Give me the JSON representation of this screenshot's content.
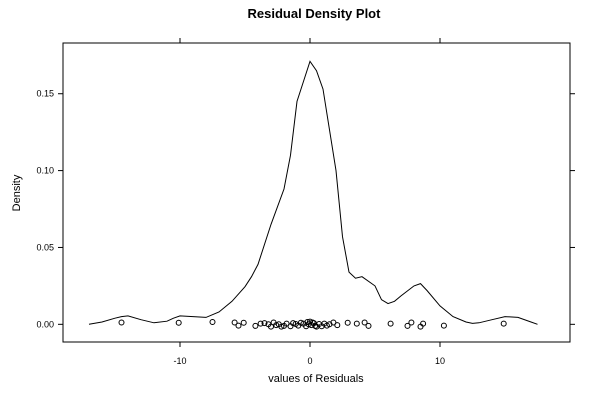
{
  "chart_data": {
    "type": "line",
    "title": "Residual Density Plot",
    "xlabel": "values of Residuals",
    "ylabel": "Density",
    "xlim": [
      -19,
      20
    ],
    "ylim": [
      -0.0115,
      0.183
    ],
    "x_ticks": [
      -10,
      0,
      10
    ],
    "x_tick_labels": [
      "-10",
      "0",
      "10"
    ],
    "y_ticks": [
      0.0,
      0.05,
      0.1,
      0.15
    ],
    "y_tick_labels": [
      "0.00",
      "0.05",
      "0.10",
      "0.15"
    ],
    "grid": false,
    "legend": "none",
    "series": [
      {
        "kind": "density-curve",
        "x": [
          -17.0,
          -16.0,
          -15.0,
          -14.5,
          -14.0,
          -13.0,
          -12.0,
          -11.0,
          -10.5,
          -10.0,
          -9.0,
          -8.0,
          -7.0,
          -6.0,
          -5.0,
          -4.5,
          -4.0,
          -3.0,
          -2.0,
          -1.5,
          -1.0,
          -0.5,
          0.0,
          0.5,
          1.0,
          2.0,
          2.5,
          3.0,
          3.5,
          4.0,
          5.0,
          5.5,
          6.0,
          6.5,
          7.0,
          8.0,
          8.5,
          9.0,
          10.0,
          11.0,
          12.0,
          12.5,
          13.0,
          14.0,
          15.0,
          16.0,
          17.0,
          17.5
        ],
        "y": [
          0.0,
          0.0015,
          0.004,
          0.005,
          0.0055,
          0.003,
          0.001,
          0.002,
          0.004,
          0.0055,
          0.005,
          0.0045,
          0.008,
          0.015,
          0.0245,
          0.031,
          0.039,
          0.065,
          0.088,
          0.11,
          0.145,
          0.158,
          0.171,
          0.165,
          0.153,
          0.1,
          0.057,
          0.034,
          0.03,
          0.031,
          0.025,
          0.016,
          0.0135,
          0.015,
          0.0185,
          0.025,
          0.0265,
          0.022,
          0.012,
          0.005,
          0.0015,
          0.0006,
          0.001,
          0.003,
          0.005,
          0.0045,
          0.0015,
          0.0
        ]
      },
      {
        "kind": "rug-points",
        "x": [
          -14.5,
          -10.1,
          -7.5,
          -5.8,
          -5.5,
          -5.1,
          -4.2,
          -3.8,
          -3.5,
          -3.2,
          -3.0,
          -2.8,
          -2.6,
          -2.4,
          -2.2,
          -2.0,
          -1.8,
          -1.5,
          -1.3,
          -1.1,
          -0.9,
          -0.7,
          -0.5,
          -0.3,
          -0.2,
          -0.1,
          0.0,
          0.1,
          0.2,
          0.3,
          0.4,
          0.5,
          0.7,
          0.9,
          1.1,
          1.3,
          1.5,
          1.8,
          2.1,
          2.9,
          3.6,
          4.2,
          4.5,
          6.2,
          7.5,
          7.8,
          8.5,
          8.7,
          10.3,
          14.9
        ],
        "y": [
          0.0012,
          0.001,
          0.0015,
          0.0012,
          -0.0008,
          0.001,
          -0.001,
          0.0005,
          0.0008,
          0.0,
          -0.0015,
          0.0012,
          -0.0005,
          0.0,
          -0.0015,
          -0.001,
          0.0005,
          -0.0012,
          0.0008,
          0.0002,
          -0.0008,
          0.001,
          0.0005,
          -0.0012,
          0.0015,
          0.0,
          0.0018,
          -0.0005,
          0.0012,
          0.0008,
          -0.001,
          -0.0015,
          0.0002,
          -0.0012,
          0.0005,
          -0.0008,
          0.0,
          0.0012,
          -0.0005,
          0.001,
          0.0005,
          0.0012,
          -0.001,
          0.0005,
          -0.001,
          0.0012,
          -0.0015,
          0.0005,
          -0.0008,
          0.0005
        ]
      }
    ]
  }
}
